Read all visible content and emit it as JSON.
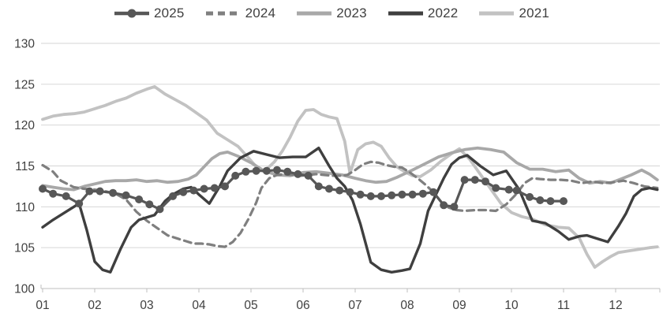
{
  "chart_data": {
    "type": "line",
    "title": "",
    "xlabel": "",
    "ylabel": "",
    "legend_position": "top-center",
    "grid": true,
    "grid_color": "#d6d6d6",
    "axis_color": "#bfbfbf",
    "label_color": "#404040",
    "x_axis": {
      "tick_labels": [
        "01",
        "02",
        "03",
        "04",
        "05",
        "06",
        "07",
        "08",
        "09",
        "10",
        "11",
        "12"
      ],
      "range": [
        1,
        12.8
      ]
    },
    "y_axis": {
      "tick_labels": [
        "100",
        "105",
        "110",
        "115",
        "120",
        "125",
        "130"
      ],
      "ticks": [
        100,
        105,
        110,
        115,
        120,
        125,
        130
      ],
      "ylim": [
        100,
        130
      ]
    },
    "series": [
      {
        "name": "2025",
        "color": "#575757",
        "style": "solid-markers",
        "width": 3.2,
        "marker_radius": 5,
        "x": [
          1.0,
          1.2,
          1.45,
          1.7,
          1.9,
          2.1,
          2.35,
          2.6,
          2.85,
          3.05,
          3.25,
          3.5,
          3.7,
          3.9,
          4.1,
          4.3,
          4.5,
          4.7,
          4.9,
          5.1,
          5.3,
          5.5,
          5.7,
          5.9,
          6.1,
          6.3,
          6.5,
          6.7,
          6.9,
          7.1,
          7.3,
          7.5,
          7.7,
          7.9,
          8.1,
          8.3,
          8.5,
          8.7,
          8.9,
          9.1,
          9.3,
          9.5,
          9.7,
          9.95,
          10.1,
          10.35,
          10.55,
          10.75,
          11.0
        ],
        "values": [
          112.2,
          111.6,
          111.3,
          110.4,
          111.9,
          111.9,
          111.7,
          111.4,
          110.9,
          110.3,
          109.7,
          111.3,
          111.8,
          112.0,
          112.2,
          112.3,
          112.5,
          113.8,
          114.3,
          114.4,
          114.4,
          114.5,
          114.3,
          114.0,
          113.8,
          112.5,
          112.2,
          112.0,
          111.8,
          111.5,
          111.3,
          111.3,
          111.4,
          111.5,
          111.5,
          111.6,
          111.8,
          110.2,
          110.0,
          113.3,
          113.3,
          113.1,
          112.3,
          112.1,
          112.0,
          111.2,
          110.8,
          110.7,
          110.7
        ]
      },
      {
        "name": "2024",
        "color": "#7f7f7f",
        "style": "dashed",
        "width": 3.2,
        "x": [
          1.0,
          1.2,
          1.35,
          1.6,
          1.8,
          2.0,
          2.2,
          2.4,
          2.6,
          2.8,
          3.0,
          3.2,
          3.4,
          3.6,
          3.75,
          3.9,
          4.05,
          4.2,
          4.35,
          4.5,
          4.65,
          4.8,
          4.95,
          5.1,
          5.2,
          5.35,
          5.5,
          5.65,
          5.8,
          5.95,
          6.1,
          6.25,
          6.4,
          6.55,
          6.7,
          6.85,
          7.0,
          7.15,
          7.3,
          7.45,
          7.6,
          7.75,
          7.9,
          8.05,
          8.2,
          8.35,
          8.5,
          8.65,
          8.8,
          8.95,
          9.1,
          9.3,
          9.5,
          9.7,
          9.9,
          10.1,
          10.25,
          10.4,
          10.55,
          10.75,
          10.95,
          11.15,
          11.35,
          11.55,
          11.75,
          11.95,
          12.15,
          12.35,
          12.55,
          12.8
        ],
        "values": [
          115.1,
          114.3,
          113.2,
          112.4,
          112.2,
          112.1,
          111.9,
          111.6,
          110.9,
          109.4,
          108.3,
          107.4,
          106.5,
          106.1,
          105.8,
          105.5,
          105.5,
          105.4,
          105.2,
          105.1,
          105.7,
          106.8,
          108.5,
          110.5,
          112.3,
          113.5,
          113.9,
          114.0,
          113.9,
          113.8,
          113.9,
          114.0,
          113.9,
          113.8,
          113.8,
          113.9,
          114.5,
          115.2,
          115.5,
          115.4,
          115.1,
          114.9,
          114.8,
          114.2,
          113.5,
          112.7,
          111.8,
          110.6,
          109.9,
          109.6,
          109.5,
          109.6,
          109.6,
          109.5,
          110.3,
          111.6,
          112.9,
          113.5,
          113.4,
          113.3,
          113.3,
          113.2,
          112.9,
          113.1,
          112.9,
          113.0,
          113.2,
          112.9,
          112.5,
          112.3
        ]
      },
      {
        "name": "2023",
        "color": "#a8a8a8",
        "style": "solid",
        "width": 3.8,
        "x": [
          1.0,
          1.2,
          1.4,
          1.6,
          1.8,
          2.0,
          2.2,
          2.4,
          2.6,
          2.8,
          3.0,
          3.2,
          3.4,
          3.6,
          3.8,
          3.95,
          4.1,
          4.25,
          4.4,
          4.55,
          4.75,
          5.0,
          5.25,
          5.5,
          5.75,
          6.0,
          6.25,
          6.5,
          6.75,
          7.0,
          7.2,
          7.4,
          7.6,
          7.8,
          8.1,
          8.35,
          8.6,
          8.85,
          9.1,
          9.35,
          9.6,
          9.85,
          10.1,
          10.35,
          10.6,
          10.85,
          11.1,
          11.3,
          11.5,
          11.7,
          11.9,
          12.1,
          12.3,
          12.5,
          12.65,
          12.8
        ],
        "values": [
          112.6,
          112.4,
          112.2,
          112.1,
          112.5,
          112.8,
          113.1,
          113.2,
          113.2,
          113.3,
          113.1,
          113.2,
          113.0,
          113.1,
          113.4,
          113.9,
          114.9,
          115.9,
          116.5,
          116.7,
          116.2,
          115.4,
          114.4,
          113.9,
          113.8,
          114.2,
          114.3,
          114.1,
          113.9,
          113.5,
          113.2,
          113.0,
          113.1,
          113.6,
          114.5,
          115.3,
          116.1,
          116.6,
          117.0,
          117.2,
          117.0,
          116.7,
          115.4,
          114.6,
          114.6,
          114.3,
          114.5,
          113.5,
          112.9,
          113.1,
          112.9,
          113.4,
          113.9,
          114.5,
          114.0,
          113.3
        ]
      },
      {
        "name": "2022",
        "color": "#3f3f3f",
        "style": "solid",
        "width": 3.4,
        "x": [
          1.0,
          1.2,
          1.45,
          1.7,
          1.85,
          2.0,
          2.15,
          2.3,
          2.5,
          2.7,
          2.85,
          3.0,
          3.15,
          3.35,
          3.5,
          3.7,
          3.85,
          4.0,
          4.2,
          4.4,
          4.55,
          4.8,
          5.05,
          5.3,
          5.55,
          5.8,
          6.05,
          6.3,
          6.5,
          6.65,
          6.8,
          6.95,
          7.1,
          7.3,
          7.5,
          7.7,
          7.9,
          8.05,
          8.25,
          8.4,
          8.55,
          8.7,
          8.85,
          9.0,
          9.15,
          9.4,
          9.65,
          9.9,
          10.15,
          10.4,
          10.65,
          10.9,
          11.1,
          11.3,
          11.45,
          11.6,
          11.85,
          12.05,
          12.2,
          12.35,
          12.5,
          12.65,
          12.8
        ],
        "values": [
          107.5,
          108.4,
          109.4,
          110.4,
          107.1,
          103.3,
          102.3,
          102.0,
          104.9,
          107.5,
          108.4,
          108.7,
          109.0,
          110.7,
          111.5,
          112.2,
          112.4,
          111.5,
          110.4,
          112.5,
          114.4,
          116.0,
          116.8,
          116.4,
          116.0,
          116.1,
          116.1,
          117.2,
          115.0,
          113.5,
          112.5,
          110.8,
          107.9,
          103.2,
          102.3,
          102.0,
          102.2,
          102.4,
          105.5,
          109.5,
          111.5,
          113.5,
          115.2,
          116.0,
          116.3,
          115.0,
          113.9,
          114.4,
          112.1,
          108.3,
          108.0,
          107.0,
          106.0,
          106.4,
          106.5,
          106.2,
          105.7,
          107.6,
          109.2,
          111.3,
          112.1,
          112.3,
          112.1
        ]
      },
      {
        "name": "2021",
        "color": "#c2c2c2",
        "style": "solid",
        "width": 3.8,
        "x": [
          1.0,
          1.2,
          1.4,
          1.6,
          1.8,
          2.0,
          2.2,
          2.4,
          2.6,
          2.8,
          3.0,
          3.15,
          3.35,
          3.55,
          3.75,
          3.95,
          4.15,
          4.35,
          4.55,
          4.75,
          4.95,
          5.1,
          5.25,
          5.45,
          5.6,
          5.75,
          5.9,
          6.05,
          6.2,
          6.35,
          6.5,
          6.65,
          6.8,
          6.9,
          7.05,
          7.2,
          7.35,
          7.5,
          7.65,
          7.8,
          7.95,
          8.1,
          8.25,
          8.45,
          8.65,
          8.85,
          9.0,
          9.2,
          9.4,
          9.6,
          9.8,
          10.0,
          10.2,
          10.4,
          10.65,
          10.9,
          11.1,
          11.3,
          11.45,
          11.6,
          11.75,
          11.9,
          12.05,
          12.25,
          12.45,
          12.65,
          12.8
        ],
        "values": [
          120.7,
          121.1,
          121.3,
          121.4,
          121.6,
          122.0,
          122.4,
          122.9,
          123.3,
          123.9,
          124.4,
          124.7,
          123.8,
          123.1,
          122.4,
          121.5,
          120.6,
          119.0,
          118.2,
          117.4,
          116.0,
          114.9,
          114.3,
          115.5,
          116.8,
          118.5,
          120.5,
          121.8,
          121.9,
          121.3,
          121.0,
          120.8,
          118.0,
          114.1,
          117.0,
          117.7,
          117.9,
          117.4,
          116.0,
          114.9,
          114.3,
          113.8,
          113.7,
          114.5,
          115.6,
          116.5,
          117.1,
          115.8,
          114.0,
          112.2,
          110.4,
          109.3,
          108.8,
          108.5,
          107.8,
          107.5,
          107.4,
          106.2,
          104.2,
          102.6,
          103.3,
          103.9,
          104.4,
          104.6,
          104.8,
          105.0,
          105.1
        ]
      }
    ]
  }
}
